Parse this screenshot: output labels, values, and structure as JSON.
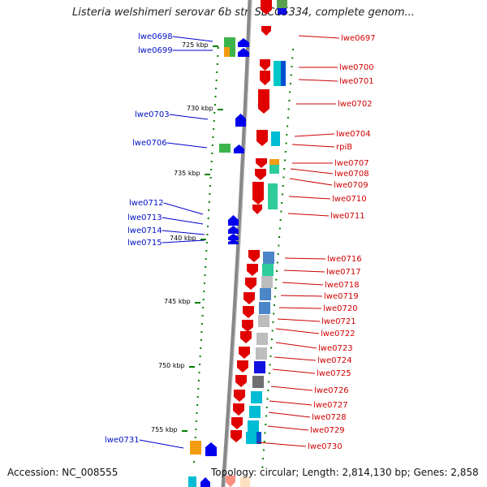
{
  "title": "Listeria welshimeri serovar 6b str. SLCC5334, complete genom...",
  "footer": {
    "accession": "Accession: NC_008555",
    "topology": "Topology: circular; Length: 2,814,130 bp; Genes: 2,858"
  },
  "scale_labels": [
    "725 kbp",
    "730 kbp",
    "735 kbp",
    "740 kbp",
    "745 kbp",
    "750 kbp",
    "755 kbp"
  ],
  "left_genes": [
    "lwe0698",
    "lwe0699",
    "lwe0703",
    "lwe0706",
    "lwe0712",
    "lwe0713",
    "lwe0714",
    "lwe0715",
    "lwe0731"
  ],
  "right_genes": [
    "lwe0697",
    "lwe0700",
    "lwe0701",
    "lwe0702",
    "lwe0704",
    "rpiB",
    "lwe0707",
    "lwe0708",
    "lwe0709",
    "lwe0710",
    "lwe0711",
    "lwe0716",
    "lwe0717",
    "lwe0718",
    "lwe0719",
    "lwe0720",
    "lwe0721",
    "lwe0722",
    "lwe0723",
    "lwe0724",
    "lwe0725",
    "lwe0726",
    "lwe0727",
    "lwe0728",
    "lwe0729",
    "lwe0730"
  ],
  "colors": {
    "forward_strand": "#0000ee",
    "reverse_strand": "#ee0000",
    "backbone": "#888888",
    "scale_ticks": "#008000"
  }
}
